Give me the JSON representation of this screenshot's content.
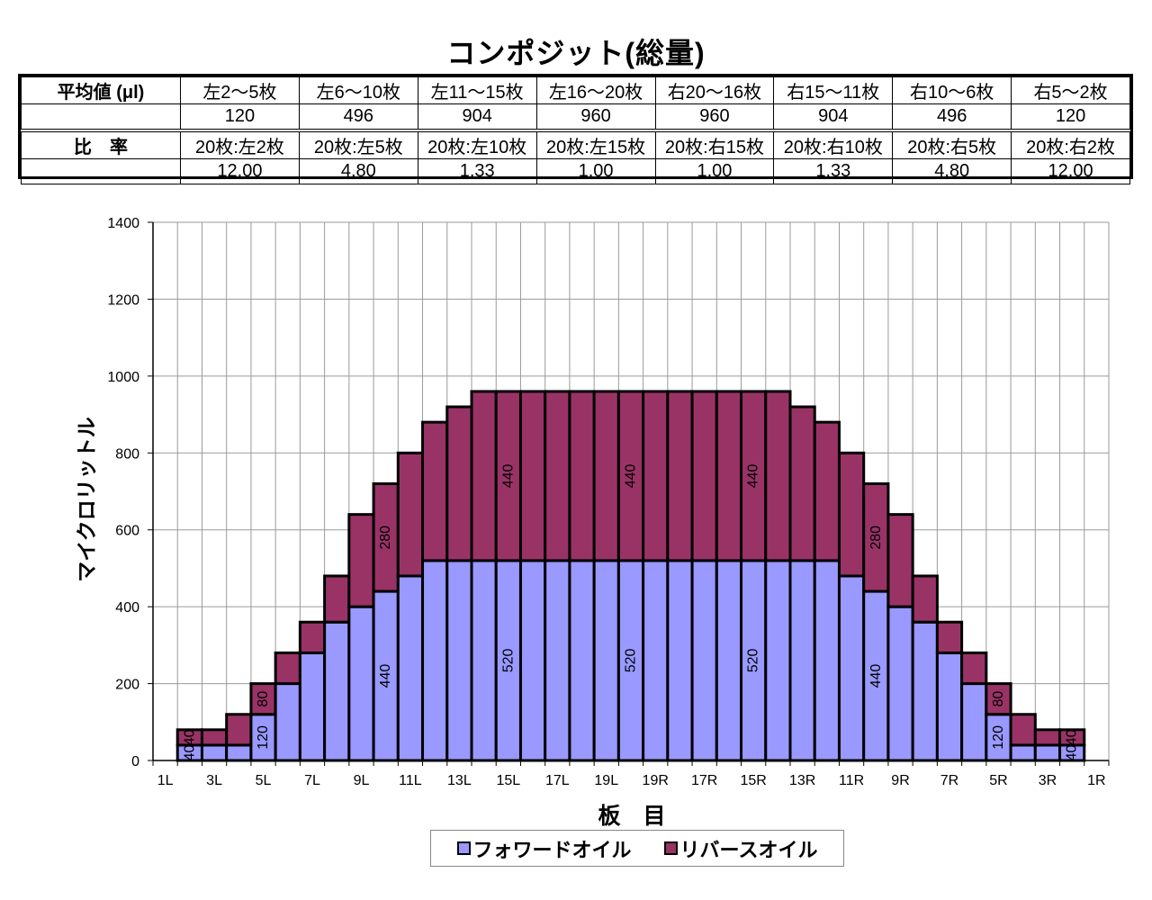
{
  "title": "コンポジット(総量)",
  "table": {
    "row1_header": "平均値 (μl)",
    "row1_columns": [
      "左2～5枚",
      "左6～10枚",
      "左11～15枚",
      "左16～20枚",
      "右20～16枚",
      "右15～11枚",
      "右10～6枚",
      "右5～2枚"
    ],
    "row1_values": [
      "120",
      "496",
      "904",
      "960",
      "960",
      "904",
      "496",
      "120"
    ],
    "row2_header": "比　率",
    "row2_columns": [
      "20枚:左2枚",
      "20枚:左5枚",
      "20枚:左10枚",
      "20枚:左15枚",
      "20枚:右15枚",
      "20枚:右10枚",
      "20枚:右5枚",
      "20枚:右2枚"
    ],
    "row2_values": [
      "12.00",
      "4.80",
      "1.33",
      "1.00",
      "1.00",
      "1.33",
      "4.80",
      "12.00"
    ]
  },
  "chart_data": {
    "type": "bar",
    "stacked": true,
    "xlabel": "板　目",
    "ylabel": "マイクロリットル",
    "ylim": [
      0,
      1400
    ],
    "yticks": [
      0,
      200,
      400,
      600,
      800,
      1000,
      1200,
      1400
    ],
    "grid": true,
    "legend_position": "bottom",
    "categories": [
      "1L",
      "",
      "3L",
      "",
      "5L",
      "",
      "7L",
      "",
      "9L",
      "",
      "11L",
      "",
      "13L",
      "",
      "15L",
      "",
      "17L",
      "",
      "19L",
      "",
      "19R",
      "",
      "17R",
      "",
      "15R",
      "",
      "13R",
      "",
      "11R",
      "",
      "9R",
      "",
      "7R",
      "",
      "5R",
      "",
      "3R",
      "",
      "1R"
    ],
    "series": [
      {
        "name": "フォワードオイル",
        "color": "#9999ff",
        "values": [
          0,
          40,
          40,
          40,
          120,
          200,
          280,
          360,
          400,
          440,
          480,
          520,
          520,
          520,
          520,
          520,
          520,
          520,
          520,
          520,
          520,
          520,
          520,
          520,
          520,
          520,
          520,
          520,
          480,
          440,
          400,
          360,
          280,
          200,
          120,
          40,
          40,
          40,
          0
        ]
      },
      {
        "name": "リバースオイル",
        "color": "#993366",
        "values": [
          0,
          40,
          40,
          80,
          80,
          80,
          80,
          120,
          240,
          280,
          320,
          360,
          400,
          440,
          440,
          440,
          440,
          440,
          440,
          440,
          440,
          440,
          440,
          440,
          440,
          440,
          400,
          360,
          320,
          280,
          240,
          120,
          80,
          80,
          80,
          80,
          40,
          40,
          0
        ]
      }
    ],
    "data_label_indices": [
      1,
      4,
      9,
      14,
      19,
      24,
      29,
      34,
      37
    ]
  }
}
